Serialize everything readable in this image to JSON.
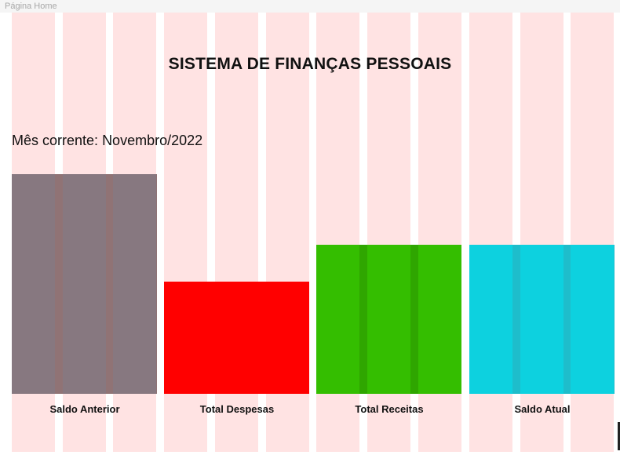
{
  "frame_title": "Página Home",
  "header": {
    "title": "SISTEMA DE FINANÇAS PESSOAIS"
  },
  "month": {
    "label": "Mês corrente:",
    "value": "Novembro/2022"
  },
  "colors": {
    "grid_column": "#ffe3e3",
    "saldo_anterior": "#907375",
    "total_despesas": "#ff0000",
    "total_receitas": "#2fa600",
    "saldo_atual": "#1ebdcb"
  },
  "chart_data": {
    "type": "bar",
    "categories": [
      "Saldo Anterior",
      "Total Despesas",
      "Total Receitas",
      "Saldo Atual"
    ],
    "values": [
      280,
      143,
      190,
      190
    ],
    "ylim": [
      0,
      280
    ],
    "title": "",
    "xlabel": "",
    "ylabel": "",
    "grid": false
  }
}
